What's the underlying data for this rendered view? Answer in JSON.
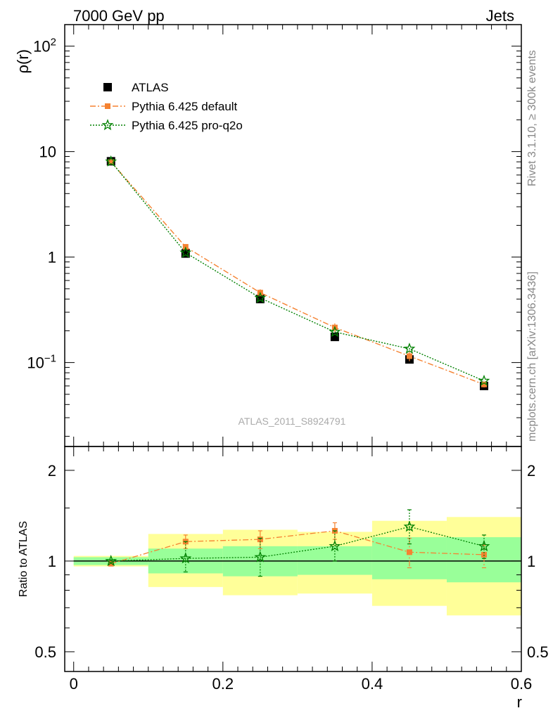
{
  "header": {
    "left": "7000 GeV pp",
    "right": "Jets"
  },
  "side_text": {
    "rivet": "Rivet 3.1.10, ≥ 300k events",
    "mcplots": "mcplots.cern.ch [arXiv:1306.3436]"
  },
  "watermark": "ATLAS_2011_S8924791",
  "colors": {
    "atlas": "#000000",
    "default": "#f58231",
    "proq2o": "#008000",
    "band_outer": "#ffff99",
    "band_inner": "#99ff99"
  },
  "chart_data": [
    {
      "type": "scatter",
      "panel": "main",
      "ylabel": "ρ(r)",
      "xlabel": "",
      "yscale": "log",
      "xlim": [
        -0.012,
        0.6
      ],
      "ylim": [
        0.016,
        160
      ],
      "y_ticks": [
        {
          "value": 100,
          "label": "10",
          "sup": "2"
        },
        {
          "value": 10,
          "label": "10",
          "sup": ""
        },
        {
          "value": 1,
          "label": "1",
          "sup": ""
        },
        {
          "value": 0.1,
          "label": "10",
          "sup": "−1"
        }
      ],
      "legend_position": "top-left",
      "x": [
        0.05,
        0.15,
        0.25,
        0.35,
        0.45,
        0.55
      ],
      "series": [
        {
          "name": "ATLAS",
          "marker": "square",
          "values": [
            8.1,
            1.08,
            0.4,
            0.175,
            0.107,
            0.06
          ]
        },
        {
          "name": "Pythia 6.425 default",
          "marker": "small-square",
          "line": "dash-dot",
          "values": [
            8.0,
            1.25,
            0.46,
            0.215,
            0.115,
            0.062
          ],
          "errors": [
            0.08,
            0.06,
            0.035,
            0.02,
            0.012,
            0.004
          ]
        },
        {
          "name": "Pythia 6.425 pro-q2o",
          "marker": "star",
          "line": "dotted",
          "values": [
            8.05,
            1.1,
            0.41,
            0.195,
            0.135,
            0.067
          ],
          "errors": [
            0.08,
            0.05,
            0.03,
            0.015,
            0.015,
            0.004
          ]
        }
      ]
    },
    {
      "type": "scatter",
      "panel": "ratio",
      "ylabel": "Ratio to ATLAS",
      "xlabel": "r",
      "yscale": "log",
      "xlim": [
        -0.012,
        0.6
      ],
      "ylim": [
        0.43,
        2.4
      ],
      "y_ticks": [
        {
          "value": 2,
          "label": "2"
        },
        {
          "value": 1,
          "label": "1"
        },
        {
          "value": 0.5,
          "label": "0.5"
        }
      ],
      "x_ticks": [
        {
          "value": 0,
          "label": "0"
        },
        {
          "value": 0.2,
          "label": "0.2"
        },
        {
          "value": 0.4,
          "label": "0.4"
        },
        {
          "value": 0.6,
          "label": "0.6"
        }
      ],
      "bands": [
        {
          "x0": 0.0,
          "x1": 0.1,
          "outer": [
            0.96,
            1.04
          ],
          "inner": [
            0.97,
            1.03
          ]
        },
        {
          "x0": 0.1,
          "x1": 0.2,
          "outer": [
            0.82,
            1.23
          ],
          "inner": [
            0.91,
            1.1
          ]
        },
        {
          "x0": 0.2,
          "x1": 0.3,
          "outer": [
            0.77,
            1.27
          ],
          "inner": [
            0.89,
            1.12
          ]
        },
        {
          "x0": 0.3,
          "x1": 0.4,
          "outer": [
            0.78,
            1.25
          ],
          "inner": [
            0.9,
            1.12
          ]
        },
        {
          "x0": 0.4,
          "x1": 0.5,
          "outer": [
            0.71,
            1.36
          ],
          "inner": [
            0.87,
            1.2
          ]
        },
        {
          "x0": 0.5,
          "x1": 0.6,
          "outer": [
            0.66,
            1.4
          ],
          "inner": [
            0.85,
            1.2
          ]
        }
      ],
      "x": [
        0.05,
        0.15,
        0.25,
        0.35,
        0.45,
        0.55
      ],
      "series": [
        {
          "name": "Pythia 6.425 default",
          "values": [
            0.98,
            1.16,
            1.18,
            1.26,
            1.07,
            1.05
          ],
          "err_lo": [
            0.01,
            0.06,
            0.08,
            0.08,
            0.12,
            0.1
          ],
          "err_hi": [
            0.01,
            0.06,
            0.08,
            0.08,
            0.12,
            0.08
          ]
        },
        {
          "name": "Pythia 6.425 pro-q2o",
          "values": [
            1.0,
            1.02,
            1.03,
            1.12,
            1.3,
            1.12
          ],
          "err_lo": [
            0.01,
            0.1,
            0.14,
            0.12,
            0.16,
            0.1
          ],
          "err_hi": [
            0.01,
            0.14,
            0.16,
            0.14,
            0.18,
            0.1
          ]
        }
      ]
    }
  ]
}
